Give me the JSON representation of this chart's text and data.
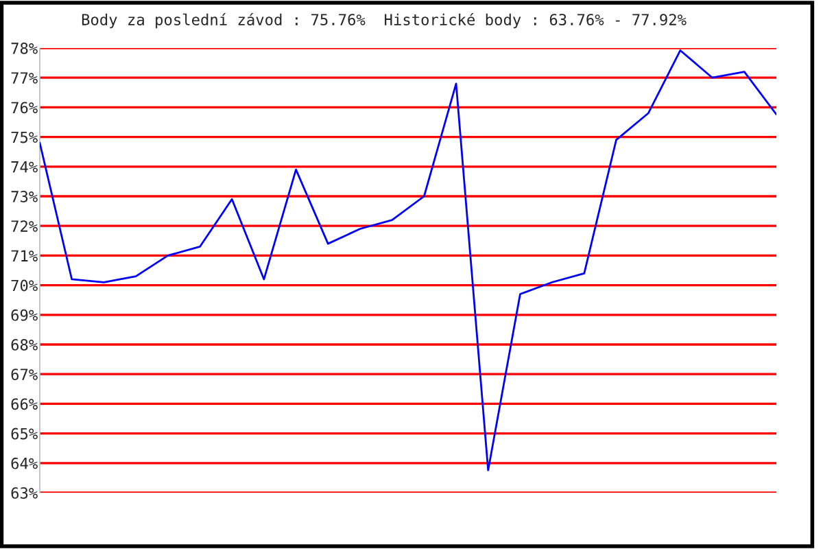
{
  "chart_data": {
    "type": "line",
    "title": "Body za poslední závod : 75.76%  Historické body : 63.76% - 77.92%",
    "categories": [
      null,
      null,
      null,
      null,
      null,
      null,
      null,
      null,
      null,
      null,
      null,
      null,
      null,
      null,
      null,
      null,
      null,
      null,
      null,
      null,
      null,
      null,
      null,
      null
    ],
    "series": [
      {
        "color": "#0000ff",
        "values": [
          74.8,
          70.2,
          70.1,
          70.3,
          71.0,
          71.3,
          72.9,
          70.2,
          73.9,
          71.4,
          71.9,
          72.2,
          73.0,
          76.8,
          63.76,
          69.7,
          70.1,
          70.4,
          74.9,
          75.8,
          77.92,
          77.0,
          77.2,
          75.76
        ]
      }
    ],
    "ylim": [
      63,
      78
    ],
    "yticks": [
      {
        "value": 63,
        "label": "63%"
      },
      {
        "value": 64,
        "label": "64%"
      },
      {
        "value": 65,
        "label": "65%"
      },
      {
        "value": 66,
        "label": "66%"
      },
      {
        "value": 67,
        "label": "67%"
      },
      {
        "value": 68,
        "label": "68%"
      },
      {
        "value": 69,
        "label": "69%"
      },
      {
        "value": 70,
        "label": "70%"
      },
      {
        "value": 71,
        "label": "71%"
      },
      {
        "value": 72,
        "label": "72%"
      },
      {
        "value": 73,
        "label": "73%"
      },
      {
        "value": 74,
        "label": "74%"
      },
      {
        "value": 75,
        "label": "75%"
      },
      {
        "value": 76,
        "label": "76%"
      },
      {
        "value": 77,
        "label": "77%"
      },
      {
        "value": 78,
        "label": "78%"
      }
    ],
    "grid": "y",
    "tick_labels": "y",
    "marker": "none",
    "line_style": "solid"
  }
}
